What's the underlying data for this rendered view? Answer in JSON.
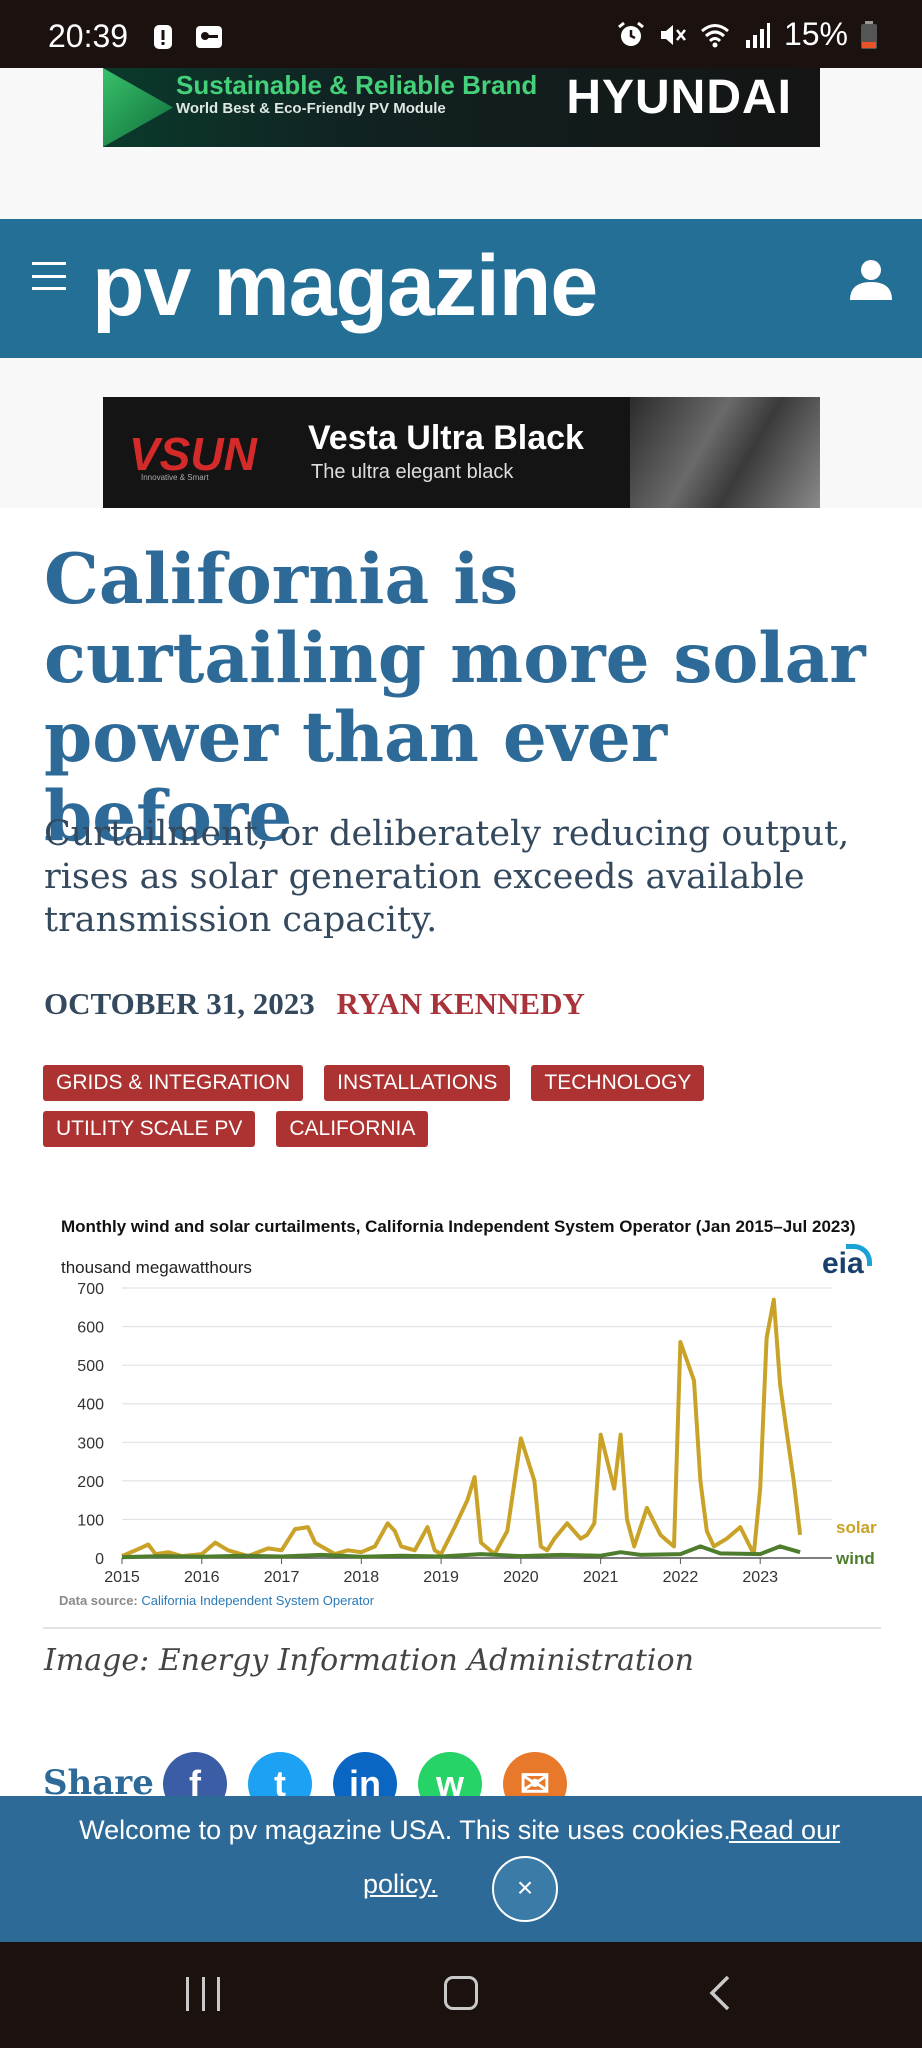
{
  "status_bar": {
    "time": "20:39",
    "battery": "15%",
    "left_icons": [
      "alert-icon",
      "key-notification-icon"
    ],
    "right_icons": [
      "alarm-icon",
      "mute-icon",
      "wifi-icon",
      "signal-icon",
      "battery-icon"
    ]
  },
  "ads": {
    "top": {
      "line1": "Sustainable & Reliable Brand",
      "line2": "World Best & Eco-Friendly PV Module",
      "brand": "HYUNDAI"
    },
    "middle": {
      "brand": "VSUN",
      "tagline": "Innovative  &  Smart",
      "title": "Vesta Ultra Black",
      "subtitle": "The ultra elegant black"
    }
  },
  "header": {
    "logo": "pv magazine",
    "menu_icon": "menu-icon",
    "user_icon": "user-icon",
    "color": "#236f95"
  },
  "article": {
    "title": "California is curtailing more solar power than ever before",
    "subtitle": "Curtailment, or deliberately reducing output, rises as solar generation exceeds available transmission capacity.",
    "date": "OCTOBER 31, 2023",
    "author": "RYAN KENNEDY",
    "tags": [
      "GRIDS & INTEGRATION",
      "INSTALLATIONS",
      "TECHNOLOGY",
      "UTILITY SCALE PV",
      "CALIFORNIA"
    ],
    "caption": "Image: Energy Information Administration",
    "share_label": "Share"
  },
  "chart": {
    "logo": "eia",
    "source_label": "Data source:",
    "source_link": "California Independent System Operator"
  },
  "chart_data": {
    "type": "line",
    "title": "Monthly wind and solar curtailments, California Independent System Operator (Jan 2015–Jul 2023)",
    "ylabel": "thousand megawatthours",
    "xlabel": "",
    "ylim": [
      0,
      700
    ],
    "yticks": [
      0,
      100,
      200,
      300,
      400,
      500,
      600,
      700
    ],
    "xticks": [
      "2015",
      "2016",
      "2017",
      "2018",
      "2019",
      "2020",
      "2021",
      "2022",
      "2023"
    ],
    "grid": true,
    "legend": "inline-right",
    "series": [
      {
        "name": "solar",
        "color": "#c9a227",
        "x": [
          2015.0,
          2015.17,
          2015.33,
          2015.42,
          2015.58,
          2015.75,
          2016.0,
          2016.17,
          2016.33,
          2016.58,
          2016.83,
          2017.0,
          2017.17,
          2017.33,
          2017.42,
          2017.5,
          2017.67,
          2017.83,
          2018.0,
          2018.17,
          2018.33,
          2018.42,
          2018.5,
          2018.67,
          2018.83,
          2018.92,
          2019.0,
          2019.17,
          2019.33,
          2019.42,
          2019.5,
          2019.67,
          2019.83,
          2020.0,
          2020.17,
          2020.25,
          2020.33,
          2020.42,
          2020.58,
          2020.75,
          2020.83,
          2020.92,
          2021.0,
          2021.17,
          2021.25,
          2021.33,
          2021.42,
          2021.58,
          2021.75,
          2021.83,
          2021.92,
          2022.0,
          2022.17,
          2022.25,
          2022.33,
          2022.42,
          2022.58,
          2022.75,
          2022.92,
          2023.0,
          2023.08,
          2023.17,
          2023.25,
          2023.33,
          2023.42,
          2023.5
        ],
        "y": [
          5,
          20,
          35,
          10,
          15,
          5,
          10,
          40,
          20,
          5,
          25,
          20,
          75,
          80,
          40,
          30,
          10,
          20,
          15,
          30,
          90,
          70,
          30,
          20,
          80,
          20,
          10,
          80,
          150,
          210,
          40,
          10,
          70,
          310,
          200,
          30,
          20,
          50,
          90,
          50,
          60,
          90,
          320,
          180,
          320,
          100,
          30,
          130,
          60,
          45,
          30,
          560,
          460,
          200,
          70,
          30,
          50,
          80,
          10,
          180,
          570,
          670,
          450,
          330,
          200,
          60
        ]
      },
      {
        "name": "wind",
        "color": "#4e7d2e",
        "x": [
          2015.0,
          2015.5,
          2016.0,
          2016.5,
          2017.0,
          2017.5,
          2018.0,
          2018.5,
          2019.0,
          2019.5,
          2020.0,
          2020.5,
          2021.0,
          2021.25,
          2021.5,
          2022.0,
          2022.25,
          2022.5,
          2023.0,
          2023.25,
          2023.5
        ],
        "y": [
          2,
          5,
          3,
          6,
          4,
          8,
          3,
          6,
          4,
          10,
          5,
          8,
          6,
          15,
          8,
          10,
          30,
          12,
          10,
          30,
          15
        ]
      }
    ]
  },
  "share_icons": [
    {
      "name": "facebook-icon",
      "glyph": "f",
      "color": "#3b5da6"
    },
    {
      "name": "twitter-icon",
      "glyph": "t",
      "color": "#1da1f2"
    },
    {
      "name": "linkedin-icon",
      "glyph": "in",
      "color": "#0a66c2"
    },
    {
      "name": "whatsapp-icon",
      "glyph": "w",
      "color": "#25d366"
    },
    {
      "name": "email-icon",
      "glyph": "✉",
      "color": "#e8782a"
    }
  ],
  "cookie_banner": {
    "text": "Welcome to pv magazine USA. This site uses cookies.",
    "link_part1": "Read our",
    "link_part2": "policy.",
    "close": "×"
  },
  "nav_bar": {
    "recents_icon": "recents-icon",
    "home_icon": "home-icon",
    "back_icon": "back-icon"
  }
}
